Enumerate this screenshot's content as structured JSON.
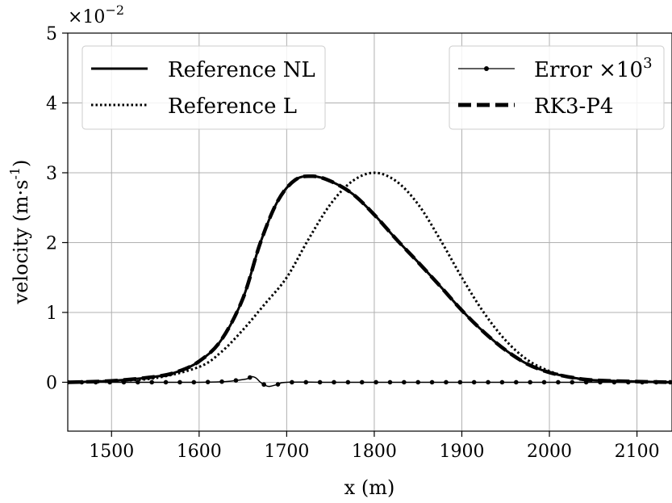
{
  "chart_data": {
    "type": "line",
    "xlabel": "x (m)",
    "ylabel_main": "velocity (m·s",
    "ylabel_sup": "-1",
    "ylabel_end": ")",
    "y_multiplier_base": "×10",
    "y_multiplier_exp": "−2",
    "xlim": [
      1450,
      2140
    ],
    "ylim": [
      -0.7,
      5
    ],
    "xticks": [
      1500,
      1600,
      1700,
      1800,
      1900,
      2000,
      2100
    ],
    "yticks": [
      0,
      1,
      2,
      3,
      4,
      5
    ],
    "grid": true,
    "legends": [
      {
        "placement": "upper-left",
        "entries": [
          {
            "label": "Reference NL",
            "style": "solid-thick"
          },
          {
            "label": "Reference L",
            "style": "dotted"
          }
        ]
      },
      {
        "placement": "upper-right",
        "entries": [
          {
            "label": "Error ×10",
            "sup": "3",
            "style": "solid-marker"
          },
          {
            "label": "RK3-P4",
            "style": "dashed-thick"
          }
        ]
      }
    ],
    "series": [
      {
        "name": "Reference NL",
        "style": "solid-thick",
        "points": [
          [
            1450,
            0.0
          ],
          [
            1500,
            0.02
          ],
          [
            1550,
            0.08
          ],
          [
            1575,
            0.15
          ],
          [
            1600,
            0.3
          ],
          [
            1625,
            0.6
          ],
          [
            1650,
            1.2
          ],
          [
            1670,
            2.0
          ],
          [
            1690,
            2.6
          ],
          [
            1710,
            2.9
          ],
          [
            1730,
            2.95
          ],
          [
            1750,
            2.88
          ],
          [
            1775,
            2.7
          ],
          [
            1800,
            2.4
          ],
          [
            1825,
            2.05
          ],
          [
            1850,
            1.72
          ],
          [
            1875,
            1.38
          ],
          [
            1900,
            1.03
          ],
          [
            1925,
            0.72
          ],
          [
            1950,
            0.46
          ],
          [
            1975,
            0.26
          ],
          [
            2000,
            0.14
          ],
          [
            2025,
            0.07
          ],
          [
            2050,
            0.03
          ],
          [
            2100,
            0.01
          ],
          [
            2140,
            0.0
          ]
        ]
      },
      {
        "name": "Reference L",
        "style": "dotted",
        "points": [
          [
            1450,
            0.0
          ],
          [
            1500,
            0.02
          ],
          [
            1550,
            0.06
          ],
          [
            1600,
            0.22
          ],
          [
            1625,
            0.43
          ],
          [
            1650,
            0.75
          ],
          [
            1675,
            1.12
          ],
          [
            1700,
            1.5
          ],
          [
            1725,
            2.05
          ],
          [
            1750,
            2.55
          ],
          [
            1775,
            2.88
          ],
          [
            1800,
            3.0
          ],
          [
            1825,
            2.88
          ],
          [
            1850,
            2.55
          ],
          [
            1875,
            2.05
          ],
          [
            1900,
            1.5
          ],
          [
            1925,
            1.0
          ],
          [
            1950,
            0.6
          ],
          [
            1975,
            0.32
          ],
          [
            2000,
            0.16
          ],
          [
            2025,
            0.07
          ],
          [
            2050,
            0.03
          ],
          [
            2100,
            0.01
          ],
          [
            2140,
            0.0
          ]
        ]
      },
      {
        "name": "RK3-P4",
        "style": "dashed-thick",
        "points": [
          [
            1450,
            0.0
          ],
          [
            1500,
            0.02
          ],
          [
            1550,
            0.08
          ],
          [
            1575,
            0.15
          ],
          [
            1600,
            0.3
          ],
          [
            1625,
            0.6
          ],
          [
            1650,
            1.2
          ],
          [
            1670,
            2.0
          ],
          [
            1690,
            2.6
          ],
          [
            1710,
            2.9
          ],
          [
            1730,
            2.95
          ],
          [
            1750,
            2.88
          ],
          [
            1775,
            2.7
          ],
          [
            1800,
            2.4
          ],
          [
            1825,
            2.05
          ],
          [
            1850,
            1.72
          ],
          [
            1875,
            1.38
          ],
          [
            1900,
            1.03
          ],
          [
            1925,
            0.72
          ],
          [
            1950,
            0.46
          ],
          [
            1975,
            0.26
          ],
          [
            2000,
            0.14
          ],
          [
            2025,
            0.07
          ],
          [
            2050,
            0.03
          ],
          [
            2100,
            0.01
          ],
          [
            2140,
            0.0
          ]
        ]
      },
      {
        "name": "Error ×10³",
        "style": "solid-marker",
        "points": [
          [
            1450,
            0.0
          ],
          [
            1500,
            0.0
          ],
          [
            1550,
            0.0
          ],
          [
            1600,
            0.0
          ],
          [
            1630,
            0.01
          ],
          [
            1645,
            0.03
          ],
          [
            1655,
            0.05
          ],
          [
            1660,
            0.08
          ],
          [
            1665,
            0.06
          ],
          [
            1670,
            0.0
          ],
          [
            1675,
            -0.04
          ],
          [
            1680,
            -0.06
          ],
          [
            1690,
            -0.03
          ],
          [
            1700,
            0.0
          ],
          [
            1750,
            0.0
          ],
          [
            1800,
            0.0
          ],
          [
            1850,
            0.0
          ],
          [
            1900,
            0.0
          ],
          [
            1950,
            0.0
          ],
          [
            2000,
            0.0
          ],
          [
            2050,
            0.0
          ],
          [
            2100,
            0.0
          ],
          [
            2140,
            0.0
          ]
        ],
        "marker_x": [
          1450,
          1466,
          1482,
          1498,
          1514,
          1530,
          1546,
          1562,
          1578,
          1594,
          1610,
          1626,
          1642,
          1658,
          1674,
          1690,
          1706,
          1722,
          1738,
          1754,
          1770,
          1786,
          1802,
          1818,
          1834,
          1850,
          1866,
          1882,
          1898,
          1914,
          1930,
          1946,
          1962,
          1978,
          1994,
          2010,
          2026,
          2042,
          2058,
          2074,
          2090,
          2106,
          2122,
          2138
        ]
      }
    ]
  }
}
